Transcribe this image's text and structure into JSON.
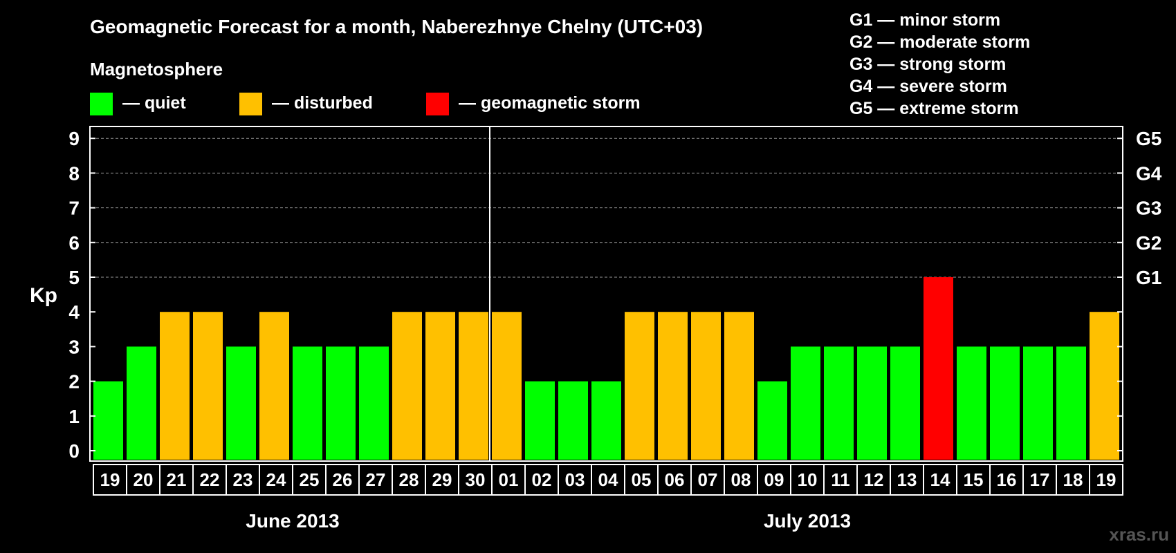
{
  "colors": {
    "background": "#000000",
    "quiet": "#00ff00",
    "disturbed": "#ffc000",
    "storm": "#ff0000",
    "text": "#ffffff",
    "grid": "#9a9a9a",
    "watermark": "#555555"
  },
  "chart_data": {
    "type": "bar",
    "title": "Geomagnetic Forecast for a month, Naberezhnye Chelny (UTC+03)",
    "ylabel": "Kp",
    "ylim": [
      0,
      9
    ],
    "yticks": [
      "0",
      "1",
      "2",
      "3",
      "4",
      "5",
      "6",
      "7",
      "8",
      "9"
    ],
    "right_ticks": [
      {
        "kp": 5,
        "label": "G1"
      },
      {
        "kp": 6,
        "label": "G2"
      },
      {
        "kp": 7,
        "label": "G3"
      },
      {
        "kp": 8,
        "label": "G4"
      },
      {
        "kp": 9,
        "label": "G5"
      }
    ],
    "grid": "dashed horizontal at Kp 5-9",
    "legend": {
      "title": "Magnetosphere",
      "items": [
        {
          "label": "— quiet",
          "color": "#00ff00"
        },
        {
          "label": "— disturbed",
          "color": "#ffc000"
        },
        {
          "label": "— geomagnetic storm",
          "color": "#ff0000"
        }
      ]
    },
    "storm_scale": [
      "G1 — minor storm",
      "G2 — moderate storm",
      "G3 — strong storm",
      "G4 — severe storm",
      "G5 — extreme storm"
    ],
    "months": [
      {
        "label": "June 2013",
        "days": 12
      },
      {
        "label": "July 2013",
        "days": 19
      }
    ],
    "categories": [
      "19",
      "20",
      "21",
      "22",
      "23",
      "24",
      "25",
      "26",
      "27",
      "28",
      "29",
      "30",
      "01",
      "02",
      "03",
      "04",
      "05",
      "06",
      "07",
      "08",
      "09",
      "10",
      "11",
      "12",
      "13",
      "14",
      "15",
      "16",
      "17",
      "18",
      "19"
    ],
    "values": [
      2,
      3,
      4,
      4,
      3,
      4,
      3,
      3,
      3,
      4,
      4,
      4,
      4,
      2,
      2,
      2,
      4,
      4,
      4,
      4,
      2,
      3,
      3,
      3,
      3,
      5,
      3,
      3,
      3,
      3,
      4
    ],
    "status": [
      "quiet",
      "quiet",
      "disturbed",
      "disturbed",
      "quiet",
      "disturbed",
      "quiet",
      "quiet",
      "quiet",
      "disturbed",
      "disturbed",
      "disturbed",
      "disturbed",
      "quiet",
      "quiet",
      "quiet",
      "disturbed",
      "disturbed",
      "disturbed",
      "disturbed",
      "quiet",
      "quiet",
      "quiet",
      "quiet",
      "quiet",
      "storm",
      "quiet",
      "quiet",
      "quiet",
      "quiet",
      "disturbed"
    ]
  },
  "watermark": "xras.ru"
}
